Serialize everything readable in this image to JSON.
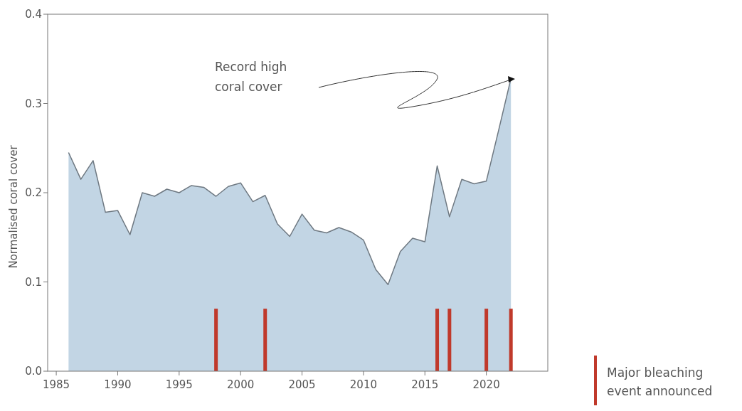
{
  "chart_data": {
    "type": "area",
    "ylabel": "Normalised coral cover",
    "x": [
      1986,
      1987,
      1988,
      1989,
      1990,
      1991,
      1992,
      1993,
      1994,
      1995,
      1996,
      1997,
      1998,
      1999,
      2000,
      2001,
      2002,
      2003,
      2004,
      2005,
      2006,
      2007,
      2008,
      2009,
      2010,
      2011,
      2012,
      2013,
      2014,
      2015,
      2016,
      2017,
      2018,
      2019,
      2020,
      2021,
      2022
    ],
    "series": [
      {
        "color": "#c2d5e4",
        "values": [
          0.245,
          0.215,
          0.236,
          0.178,
          0.18,
          0.153,
          0.2,
          0.196,
          0.204,
          0.2,
          0.208,
          0.206,
          0.196,
          0.207,
          0.211,
          0.19,
          0.197,
          0.165,
          0.151,
          0.176,
          0.158,
          0.155,
          0.161,
          0.156,
          0.147,
          0.114,
          0.097,
          0.134,
          0.149,
          0.145,
          0.23,
          0.173,
          0.215,
          0.21,
          0.213,
          0.27,
          0.328
        ]
      },
      {
        "type": "bar",
        "name": "Major bleaching event announced",
        "color": "#c0392b",
        "x": [
          1998,
          2002,
          2016,
          2017,
          2020,
          2022
        ],
        "values": [
          0.07,
          0.07,
          0.07,
          0.07,
          0.07,
          0.07
        ]
      }
    ],
    "xlim": [
      1984.3,
      2025
    ],
    "xticks": [
      1985,
      1990,
      1995,
      2000,
      2005,
      2010,
      2015,
      2020
    ],
    "ylim": [
      0,
      0.4
    ],
    "yticks": [
      {
        "value": 0,
        "label": "0.0"
      },
      {
        "value": 0.1,
        "label": "0.1"
      },
      {
        "value": 0.2,
        "label": "0.2"
      },
      {
        "value": 0.3,
        "label": "0.3"
      },
      {
        "value": 0.4,
        "label": "0.4"
      }
    ],
    "annotations": [
      "Record high coral cover"
    ],
    "legend": "bottom right",
    "grid": false
  }
}
